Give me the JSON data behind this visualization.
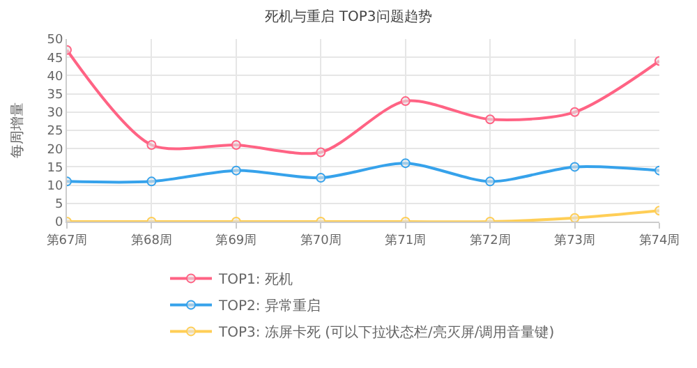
{
  "chart_data": {
    "type": "line",
    "title": "死机与重启 TOP3问题趋势",
    "ylabel": "每周增量",
    "categories": [
      "第67周",
      "第68周",
      "第69周",
      "第70周",
      "第71周",
      "第72周",
      "第73周",
      "第74周"
    ],
    "series": [
      {
        "name": "TOP1: 死机",
        "color": "#ff6384",
        "values": [
          47,
          21,
          21,
          19,
          33,
          28,
          30,
          44
        ]
      },
      {
        "name": "TOP2: 异常重启",
        "color": "#36a2eb",
        "values": [
          11,
          11,
          14,
          12,
          16,
          11,
          15,
          14
        ]
      },
      {
        "name": "TOP3: 冻屏卡死 (可以下拉状态栏/亮灭屏/调用音量键)",
        "color": "#ffce56",
        "values": [
          0,
          0,
          0,
          0,
          0,
          0,
          1,
          3
        ]
      }
    ],
    "ylim": [
      0,
      50
    ],
    "yticks": [
      0,
      5,
      10,
      15,
      20,
      25,
      30,
      35,
      40,
      45,
      50
    ],
    "grid": true,
    "legend": "bottom",
    "marker": "circle",
    "line_style": "solid"
  }
}
